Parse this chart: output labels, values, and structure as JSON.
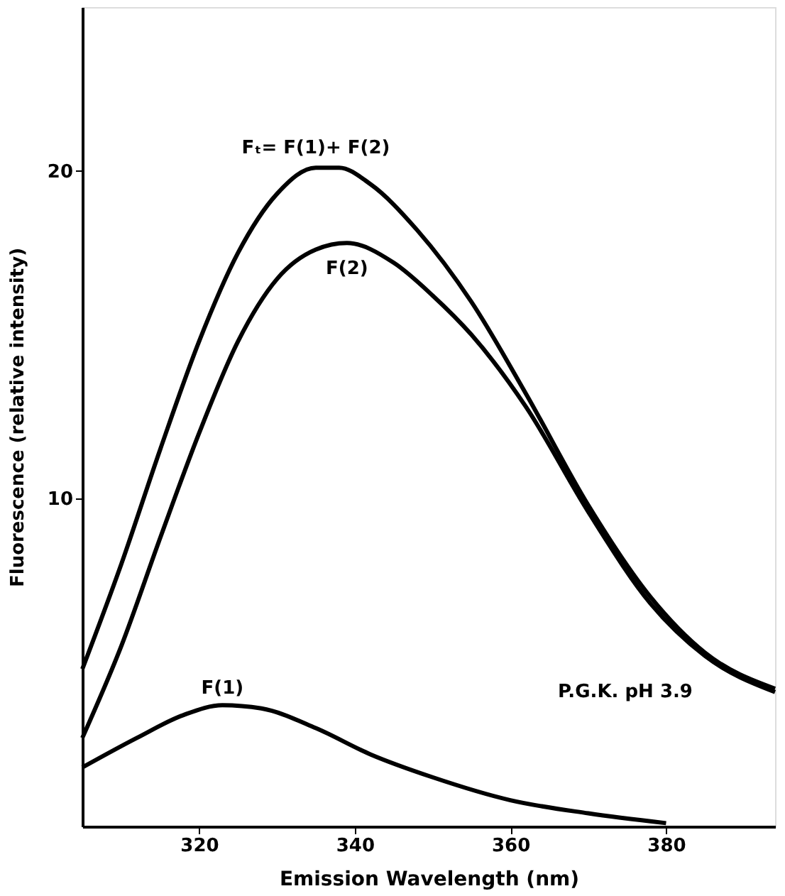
{
  "chart_data": {
    "type": "line",
    "xlabel": "Emission Wavelength (nm)",
    "ylabel": "Fluorescence  (relative intensity)",
    "xlim": [
      305,
      394
    ],
    "xticks": [
      320,
      340,
      360,
      380
    ],
    "ylim": [
      0,
      25
    ],
    "yticks": [
      10,
      20
    ],
    "grid": false,
    "marker": "none",
    "line_style": "solid",
    "series": [
      {
        "name": "Fₜ= F(1)+ F(2)",
        "color": "#000000",
        "x": [
          305,
          310,
          315,
          320,
          325,
          330,
          335,
          338,
          342,
          348,
          355,
          362,
          370,
          378,
          385,
          394
        ],
        "values": [
          4.8,
          8.0,
          11.5,
          14.8,
          17.5,
          19.3,
          20.1,
          20.1,
          19.6,
          18.2,
          16.0,
          13.2,
          9.8,
          7.0,
          5.3,
          4.2
        ]
      },
      {
        "name": "F(2)",
        "color": "#000000",
        "x": [
          305,
          310,
          315,
          320,
          325,
          330,
          335,
          339,
          345,
          350,
          355,
          362,
          370,
          378,
          385,
          394
        ],
        "values": [
          2.7,
          5.5,
          8.8,
          12.0,
          14.8,
          16.7,
          17.6,
          17.8,
          17.2,
          16.2,
          15.0,
          12.8,
          9.6,
          6.8,
          5.2,
          4.1
        ]
      },
      {
        "name": "F(1)",
        "color": "#000000",
        "x": [
          305,
          312,
          318,
          323,
          328,
          335,
          342,
          350,
          360,
          370,
          380
        ],
        "values": [
          1.8,
          2.7,
          3.4,
          3.7,
          3.6,
          3.0,
          2.2,
          1.5,
          0.8,
          0.4,
          0.1
        ]
      }
    ],
    "annotations": [
      "P.G.K.  pH 3.9"
    ]
  }
}
